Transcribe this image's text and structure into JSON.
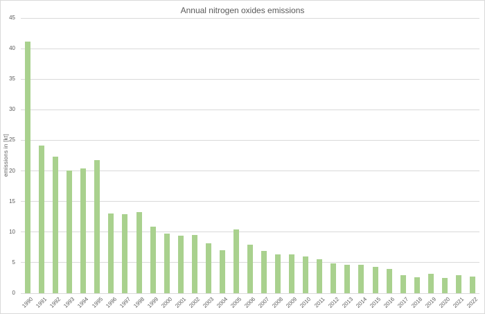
{
  "chart_data": {
    "type": "bar",
    "title": "Annual nitrogen oxides emissions",
    "ylabel": "emissions in [kt]",
    "xlabel": "",
    "categories": [
      "1990",
      "1991",
      "1992",
      "1993",
      "1994",
      "1995",
      "1996",
      "1997",
      "1998",
      "1999",
      "2000",
      "2001",
      "2002",
      "2003",
      "2004",
      "2005",
      "2006",
      "2007",
      "2008",
      "2009",
      "2010",
      "2011",
      "2012",
      "2013",
      "2014",
      "2015",
      "2016",
      "2017",
      "2018",
      "2019",
      "2020",
      "2021",
      "2022"
    ],
    "values": [
      41.1,
      24.2,
      22.3,
      20.1,
      20.4,
      21.8,
      13.0,
      12.9,
      13.3,
      10.9,
      9.7,
      9.4,
      9.5,
      8.2,
      7.0,
      10.4,
      7.9,
      6.9,
      6.4,
      6.3,
      6.0,
      5.5,
      4.9,
      4.7,
      4.6,
      4.3,
      4.0,
      3.0,
      2.6,
      3.2,
      2.5,
      2.9,
      2.7
    ],
    "ylim": [
      0,
      45
    ],
    "yticks": [
      0,
      5,
      10,
      15,
      20,
      25,
      30,
      35,
      40,
      45
    ],
    "grid": true,
    "legend": null,
    "colors": {
      "bar": "#a9d18e",
      "gridline": "#d9d9d9",
      "axis_text": "#595959",
      "title_text": "#595959",
      "background": "#ffffff",
      "frame_border": "#d9d9d9"
    }
  }
}
